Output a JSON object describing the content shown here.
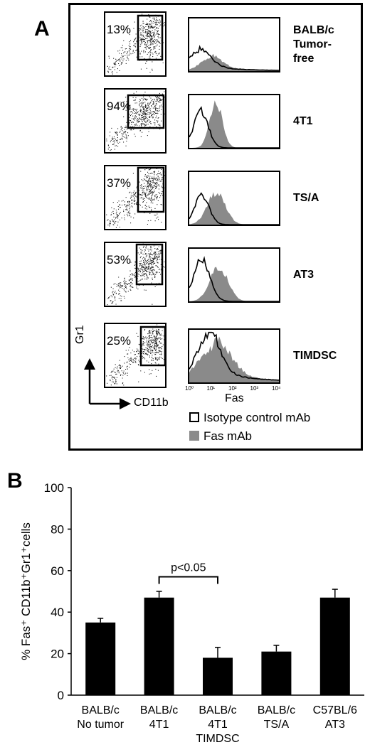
{
  "panelA": {
    "letter": "A",
    "rows": [
      {
        "percent": "13%",
        "label": "BALB/c\nTumor-\nfree"
      },
      {
        "percent": "94%",
        "label": "4T1"
      },
      {
        "percent": "37%",
        "label": "TS/A"
      },
      {
        "percent": "53%",
        "label": "AT3"
      },
      {
        "percent": "25%",
        "label": "TIMDSC"
      }
    ],
    "y_axis_label": "Gr1",
    "x_axis_label": "CD11b",
    "hist_x_label": "Fas",
    "hist_ticks": [
      "10⁰",
      "10¹",
      "10²",
      "10³",
      "10⁴"
    ],
    "legend": [
      {
        "name": "Isotype control mAb",
        "style": "outline"
      },
      {
        "name": "Fas mAb",
        "style": "filled",
        "color": "#8a8a8a"
      }
    ]
  },
  "chart_data": {
    "type": "bar",
    "panel_letter": "B",
    "ylabel": "% Fas⁺ CD11b⁺Gr1⁺cells",
    "ylim": [
      0,
      100
    ],
    "yticks": [
      0,
      20,
      40,
      60,
      80,
      100
    ],
    "categories": [
      "BALB/c\nNo tumor",
      "BALB/c\n4T1",
      "BALB/c\n4T1\nTIMDSC",
      "BALB/c\nTS/A",
      "C57BL/6\nAT3"
    ],
    "values": [
      35,
      47,
      18,
      21,
      47
    ],
    "errors": [
      2,
      3,
      5,
      3,
      4
    ],
    "bar_color": "#000000",
    "annotation": {
      "text": "p<0.05",
      "from_index": 1,
      "to_index": 2
    }
  }
}
